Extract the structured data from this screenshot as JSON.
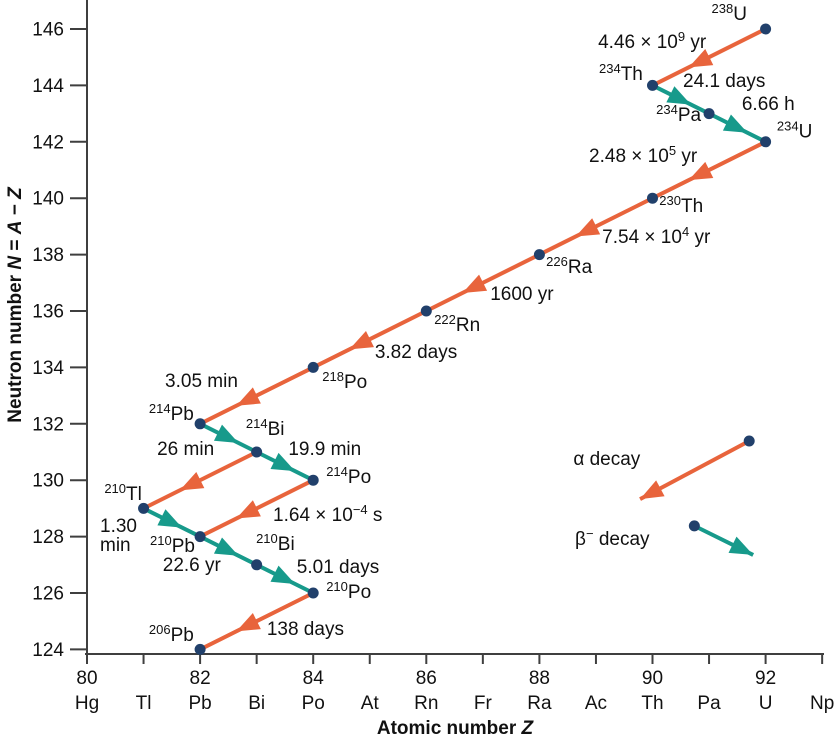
{
  "colors": {
    "alpha": "#E8643C",
    "beta": "#179A8B",
    "dot": "#21406B",
    "axis": "#3F3F3F",
    "text": "#111111"
  },
  "chart_data": {
    "type": "scatter",
    "title": "",
    "xlabel": "Atomic number *Z*",
    "ylabel": "Neutron number *N* = *A* − *Z*",
    "xlim": [
      80,
      93
    ],
    "ylim": [
      124,
      147
    ],
    "grid": false,
    "x_ticks": [
      {
        "z": 80,
        "num": "80",
        "el": "Hg"
      },
      {
        "z": 81,
        "num": "",
        "el": "Tl"
      },
      {
        "z": 82,
        "num": "82",
        "el": "Pb"
      },
      {
        "z": 83,
        "num": "",
        "el": "Bi"
      },
      {
        "z": 84,
        "num": "84",
        "el": "Po"
      },
      {
        "z": 85,
        "num": "",
        "el": "At"
      },
      {
        "z": 86,
        "num": "86",
        "el": "Rn"
      },
      {
        "z": 87,
        "num": "",
        "el": "Fr"
      },
      {
        "z": 88,
        "num": "88",
        "el": "Ra"
      },
      {
        "z": 89,
        "num": "",
        "el": "Ac"
      },
      {
        "z": 90,
        "num": "90",
        "el": "Th"
      },
      {
        "z": 91,
        "num": "",
        "el": "Pa"
      },
      {
        "z": 92,
        "num": "92",
        "el": "U"
      },
      {
        "z": 93,
        "num": "",
        "el": "Np"
      }
    ],
    "y_ticks": [
      124,
      126,
      128,
      130,
      132,
      134,
      136,
      138,
      140,
      142,
      144,
      146
    ],
    "nuclides": [
      {
        "id": "U-238",
        "label": "^{238}U",
        "z": 92,
        "n": 146,
        "lx": 91.67,
        "ln": 146.32,
        "anchor": "end"
      },
      {
        "id": "Th-234",
        "label": "^{234}Th",
        "z": 90,
        "n": 144,
        "lx": 89.83,
        "ln": 144.19,
        "anchor": "end"
      },
      {
        "id": "Pa-234",
        "label": "^{234}Pa",
        "z": 91,
        "n": 143,
        "lx": 90.86,
        "ln": 142.74,
        "anchor": "end"
      },
      {
        "id": "U-234",
        "label": "^{234}U",
        "z": 92,
        "n": 142,
        "lx": 92.2,
        "ln": 142.15,
        "anchor": "start"
      },
      {
        "id": "Th-230",
        "label": "^{230}Th",
        "z": 90,
        "n": 140,
        "lx": 90.12,
        "ln": 139.51,
        "anchor": "start"
      },
      {
        "id": "Ra-226",
        "label": "^{226}Ra",
        "z": 88,
        "n": 138,
        "lx": 88.12,
        "ln": 137.35,
        "anchor": "start"
      },
      {
        "id": "Rn-222",
        "label": "^{222}Rn",
        "z": 86,
        "n": 136,
        "lx": 86.14,
        "ln": 135.29,
        "anchor": "start"
      },
      {
        "id": "Po-218",
        "label": "^{218}Po",
        "z": 84,
        "n": 134,
        "lx": 84.16,
        "ln": 133.27,
        "anchor": "start"
      },
      {
        "id": "Pb-214",
        "label": "^{214}Pb",
        "z": 82,
        "n": 132,
        "lx": 81.89,
        "ln": 132.13,
        "anchor": "end"
      },
      {
        "id": "Bi-214",
        "label": "^{214}Bi",
        "z": 83,
        "n": 131,
        "lx": 82.81,
        "ln": 131.6,
        "anchor": "start"
      },
      {
        "id": "Po-214",
        "label": "^{214}Po",
        "z": 84,
        "n": 130,
        "lx": 84.23,
        "ln": 129.9,
        "anchor": "start"
      },
      {
        "id": "Tl-210",
        "label": "^{210}Tl",
        "z": 81,
        "n": 129,
        "lx": 80.97,
        "ln": 129.3,
        "anchor": "end"
      },
      {
        "id": "Pb-210",
        "label": "^{210}Pb",
        "z": 82,
        "n": 128,
        "lx": 81.91,
        "ln": 127.45,
        "anchor": "end"
      },
      {
        "id": "Bi-210",
        "label": "^{210}Bi",
        "z": 83,
        "n": 127,
        "lx": 82.99,
        "ln": 127.52,
        "anchor": "start"
      },
      {
        "id": "Po-210",
        "label": "^{210}Po",
        "z": 84,
        "n": 126,
        "lx": 84.23,
        "ln": 125.82,
        "anchor": "start"
      },
      {
        "id": "Pb-206",
        "label": "^{206}Pb",
        "z": 82,
        "n": 124,
        "lx": 81.89,
        "ln": 124.3,
        "anchor": "end"
      }
    ],
    "decays": [
      {
        "from": "U-238",
        "to": "Th-234",
        "type": "alpha",
        "half_life": "4.46 × 10^{9} yr",
        "hx": 90.95,
        "hn": 145.33,
        "anchor": "end"
      },
      {
        "from": "U-234",
        "to": "Th-230",
        "type": "alpha",
        "half_life": "2.48 × 10^{5} yr",
        "hx": 90.79,
        "hn": 141.28,
        "anchor": "end"
      },
      {
        "from": "Th-230",
        "to": "Ra-226",
        "type": "alpha",
        "half_life": "7.54 × 10^{4} yr",
        "hx": 89.11,
        "hn": 138.41,
        "anchor": "start"
      },
      {
        "from": "Ra-226",
        "to": "Rn-222",
        "type": "alpha",
        "half_life": "1600 yr",
        "hx": 87.13,
        "hn": 136.39,
        "anchor": "start"
      },
      {
        "from": "Rn-222",
        "to": "Po-218",
        "type": "alpha",
        "half_life": "3.82 days",
        "hx": 85.09,
        "hn": 134.33,
        "anchor": "start"
      },
      {
        "from": "Po-218",
        "to": "Pb-214",
        "type": "alpha",
        "half_life": "3.05 min",
        "hx": 81.38,
        "hn": 133.3,
        "anchor": "start"
      },
      {
        "from": "Bi-214",
        "to": "Tl-210",
        "type": "alpha",
        "half_life": "",
        "hx": 0,
        "hn": 0,
        "anchor": "start"
      },
      {
        "from": "Po-214",
        "to": "Pb-210",
        "type": "alpha",
        "half_life": "1.64 × 10^{−4} s",
        "hx": 83.29,
        "hn": 128.55,
        "anchor": "start"
      },
      {
        "from": "Po-210",
        "to": "Pb-206",
        "type": "alpha",
        "half_life": "138 days",
        "hx": 83.18,
        "hn": 124.51,
        "anchor": "start"
      },
      {
        "from": "Th-234",
        "to": "Pa-234",
        "type": "beta",
        "half_life": "24.1 days",
        "hx": 90.54,
        "hn": 143.94,
        "anchor": "start"
      },
      {
        "from": "Pa-234",
        "to": "U-234",
        "type": "beta",
        "half_life": "6.66 h",
        "hx": 91.58,
        "hn": 143.13,
        "anchor": "start"
      },
      {
        "from": "Pb-214",
        "to": "Bi-214",
        "type": "beta",
        "half_life": "26 min",
        "hx": 81.24,
        "hn": 130.89,
        "anchor": "start"
      },
      {
        "from": "Bi-214",
        "to": "Po-214",
        "type": "beta",
        "half_life": "19.9 min",
        "hx": 83.56,
        "hn": 130.89,
        "anchor": "start"
      },
      {
        "from": "Tl-210",
        "to": "Pb-210",
        "type": "beta",
        "half_life": "1.30\nmin",
        "hx": 80.23,
        "hn": 128.16,
        "anchor": "start"
      },
      {
        "from": "Pb-210",
        "to": "Bi-210",
        "type": "beta",
        "half_life": "22.6 yr",
        "hx": 81.34,
        "hn": 126.78,
        "anchor": "start"
      },
      {
        "from": "Bi-210",
        "to": "Po-210",
        "type": "beta",
        "half_life": "5.01 days",
        "hx": 83.71,
        "hn": 126.71,
        "anchor": "start"
      }
    ],
    "legend": [
      {
        "type": "alpha",
        "label": "α decay",
        "tx": 88.6,
        "tn": 130.54,
        "x1": 91.71,
        "n1": 131.39,
        "x2": 89.78,
        "n2": 129.33
      },
      {
        "type": "beta",
        "label": "β^{−} decay",
        "tx": 88.63,
        "tn": 127.7,
        "x1": 90.74,
        "n1": 128.38,
        "x2": 91.78,
        "n2": 127.35
      }
    ]
  }
}
